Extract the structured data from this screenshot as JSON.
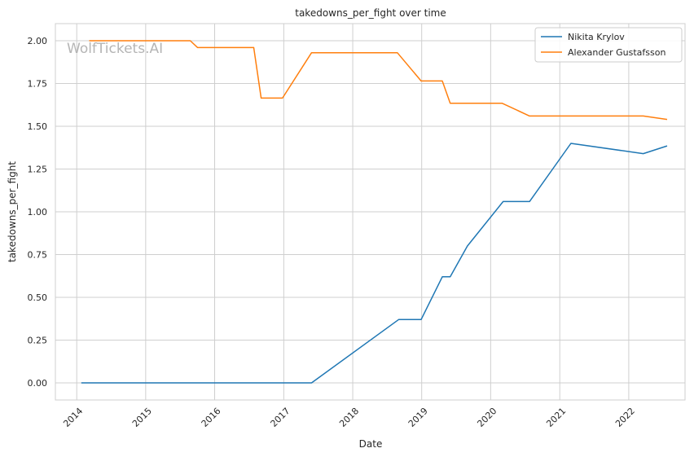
{
  "chart_data": {
    "type": "line",
    "title": "takedowns_per_fight over time",
    "xlabel": "Date",
    "ylabel": "takedowns_per_fight",
    "x_ticks": [
      "2014",
      "2015",
      "2016",
      "2017",
      "2018",
      "2019",
      "2020",
      "2021",
      "2022"
    ],
    "y_ticks": [
      "0.00",
      "0.25",
      "0.50",
      "0.75",
      "1.00",
      "1.25",
      "1.50",
      "1.75",
      "2.00"
    ],
    "xlim": [
      "2013-09-10",
      "2022-10-26"
    ],
    "ylim": [
      -0.1,
      2.1
    ],
    "grid": true,
    "legend_position": "top-right",
    "watermark": "WolfTickets.AI",
    "series": [
      {
        "name": "Nikita Krylov",
        "color": "#1f77b4",
        "points": [
          [
            "2014-01-25",
            0.0
          ],
          [
            "2017-05-28",
            0.0
          ],
          [
            "2018-09-01",
            0.37
          ],
          [
            "2018-12-29",
            0.37
          ],
          [
            "2019-04-20",
            0.62
          ],
          [
            "2019-06-01",
            0.62
          ],
          [
            "2019-08-31",
            0.8
          ],
          [
            "2020-03-07",
            1.06
          ],
          [
            "2020-07-25",
            1.06
          ],
          [
            "2021-03-01",
            1.4
          ],
          [
            "2022-03-19",
            1.34
          ],
          [
            "2022-07-23",
            1.385
          ]
        ]
      },
      {
        "name": "Alexander Gustafsson",
        "color": "#ff7f0e",
        "points": [
          [
            "2014-03-08",
            2.0
          ],
          [
            "2015-08-25",
            2.0
          ],
          [
            "2015-10-03",
            1.96
          ],
          [
            "2016-07-26",
            1.96
          ],
          [
            "2016-09-03",
            1.665
          ],
          [
            "2016-12-25",
            1.665
          ],
          [
            "2017-05-28",
            1.93
          ],
          [
            "2018-08-25",
            1.93
          ],
          [
            "2018-12-29",
            1.765
          ],
          [
            "2019-04-20",
            1.765
          ],
          [
            "2019-06-01",
            1.635
          ],
          [
            "2020-03-01",
            1.635
          ],
          [
            "2020-07-25",
            1.56
          ],
          [
            "2022-03-19",
            1.56
          ],
          [
            "2022-07-23",
            1.54
          ]
        ]
      }
    ]
  }
}
